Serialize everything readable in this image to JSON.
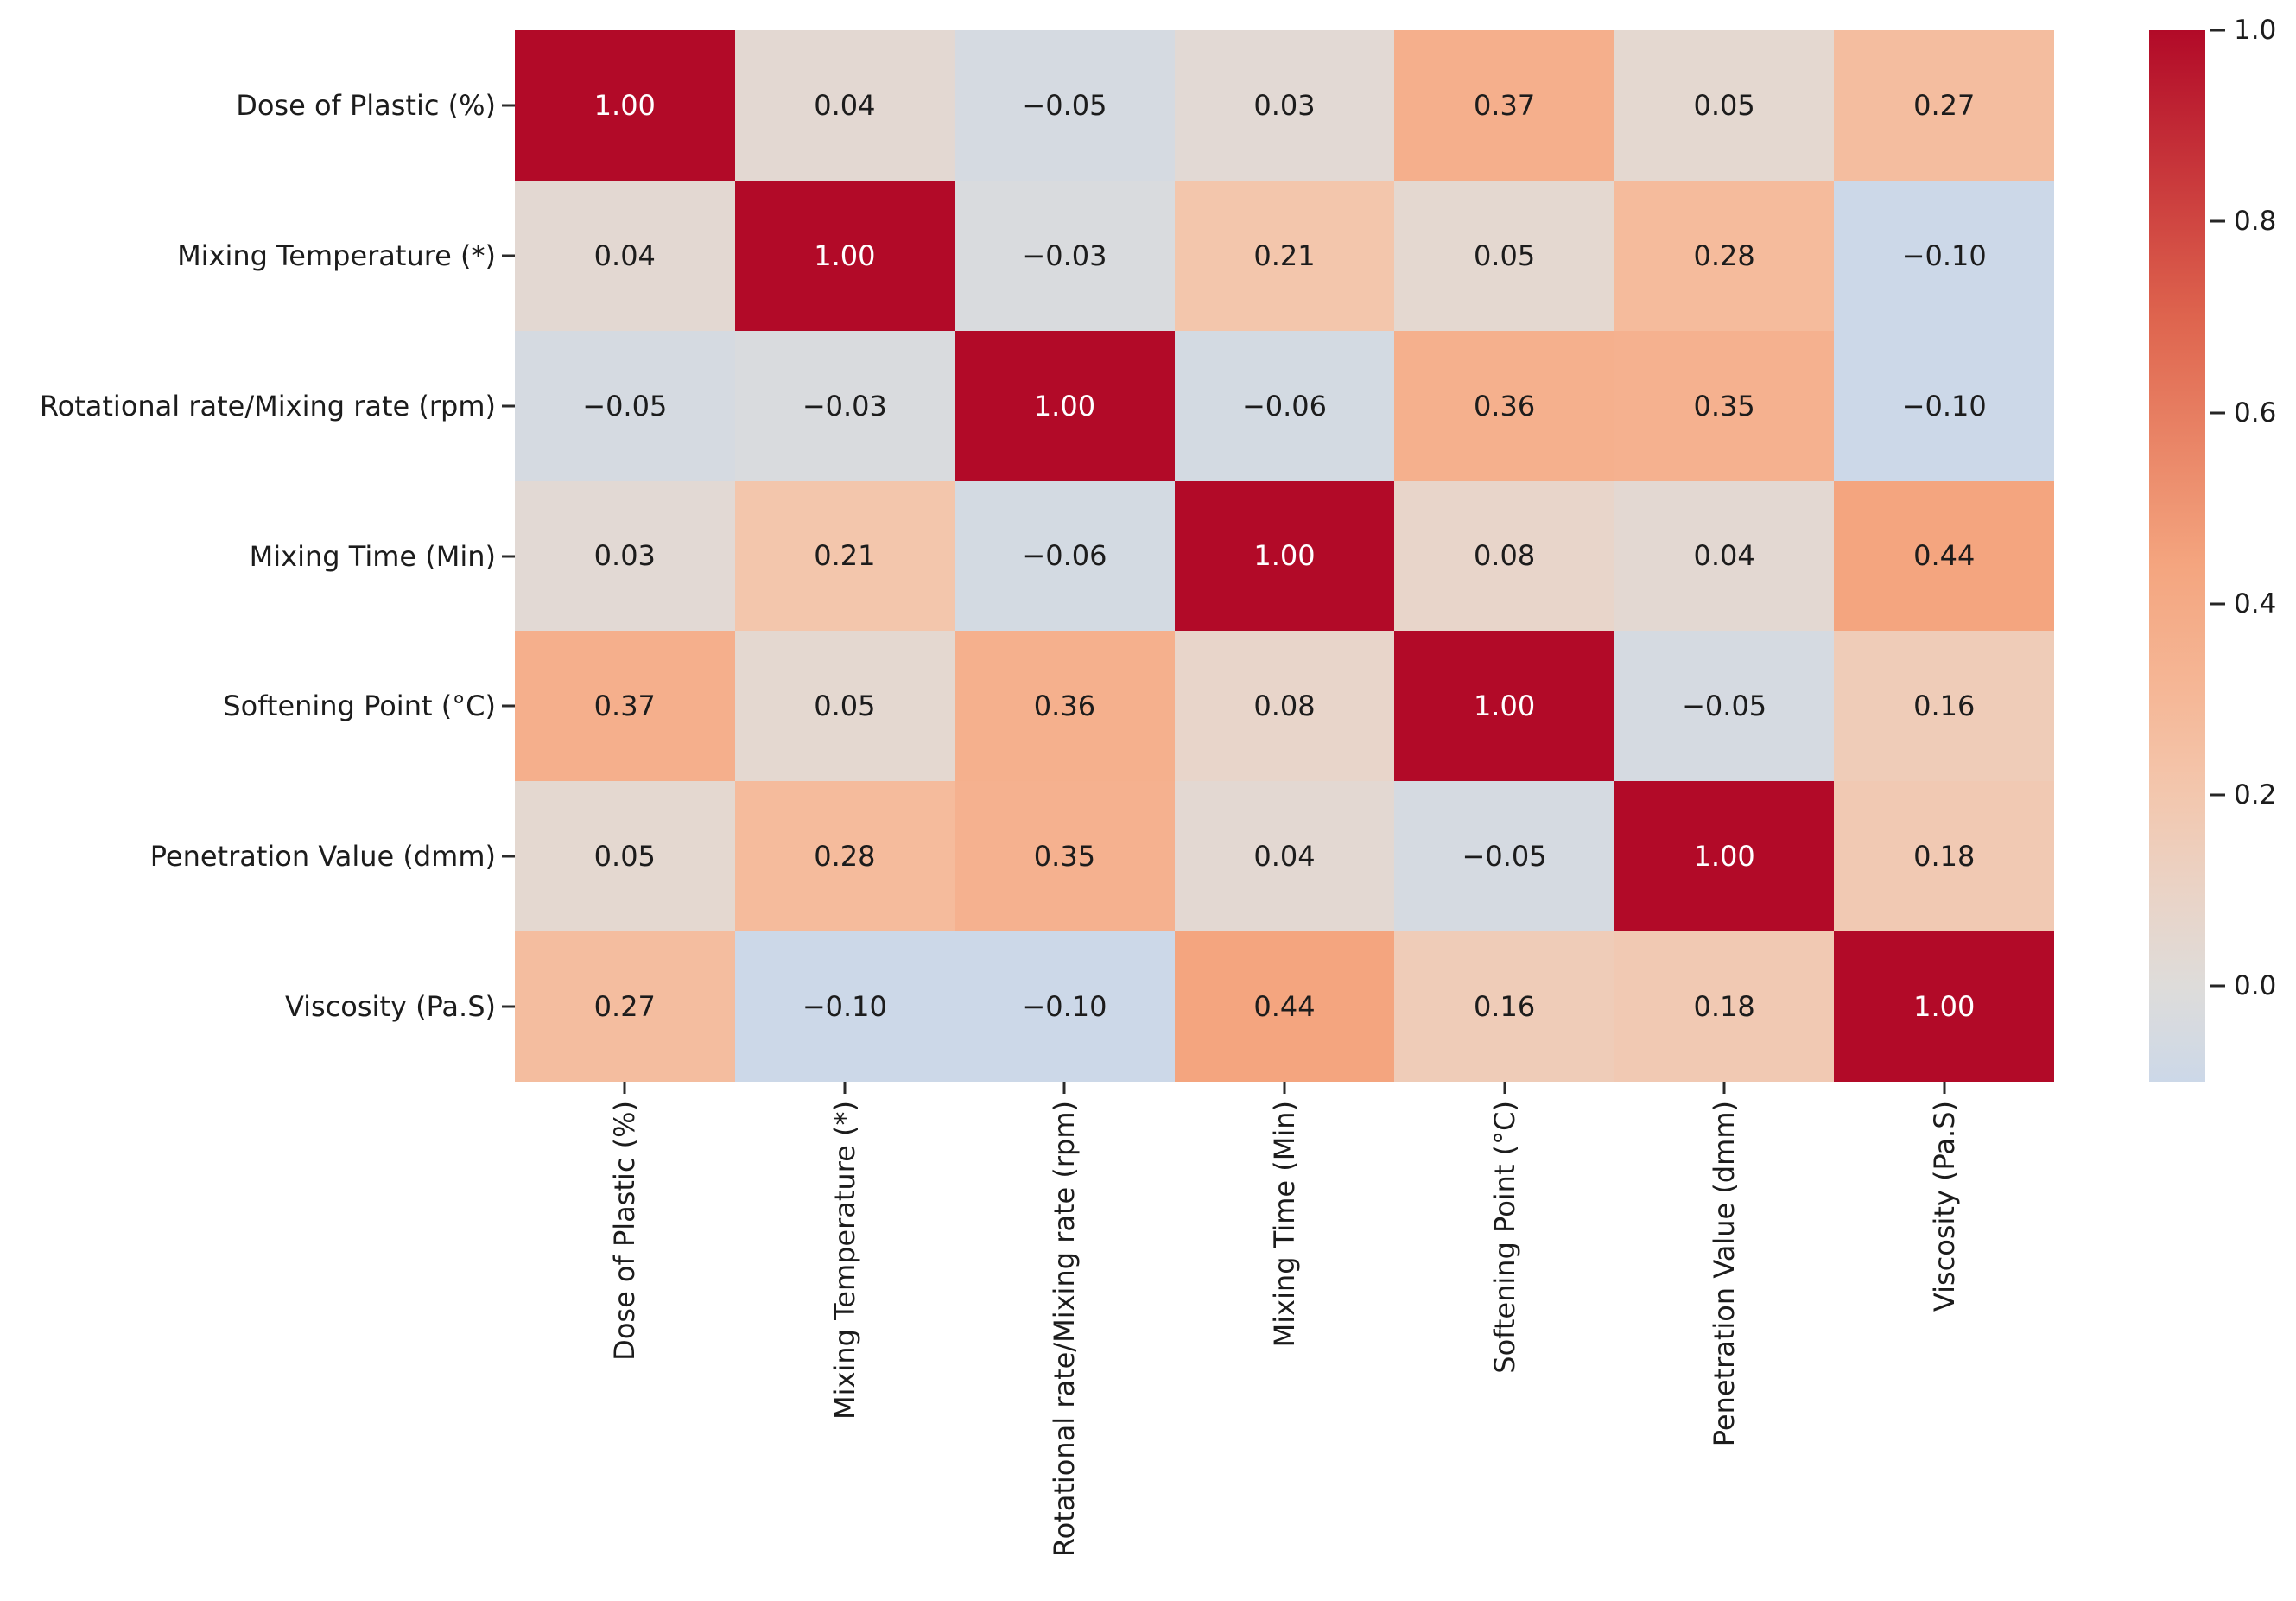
{
  "chart_data": {
    "type": "heatmap",
    "title": "",
    "xlabel": "",
    "ylabel": "",
    "grid": false,
    "legend_position": "colorbar-right",
    "categories": [
      "Dose of Plastic (%)",
      "Mixing Temperature (*)",
      "Rotational rate/Mixing rate (rpm)",
      "Mixing Time (Min)",
      "Softening Point (°C)",
      "Penetration Value (dmm)",
      "Viscosity (Pa.S)"
    ],
    "matrix": [
      [
        1.0,
        0.04,
        -0.05,
        0.03,
        0.37,
        0.05,
        0.27
      ],
      [
        0.04,
        1.0,
        -0.03,
        0.21,
        0.05,
        0.28,
        -0.1
      ],
      [
        -0.05,
        -0.03,
        1.0,
        -0.06,
        0.36,
        0.35,
        -0.1
      ],
      [
        0.03,
        0.21,
        -0.06,
        1.0,
        0.08,
        0.04,
        0.44
      ],
      [
        0.37,
        0.05,
        0.36,
        0.08,
        1.0,
        -0.05,
        0.16
      ],
      [
        0.05,
        0.28,
        0.35,
        0.04,
        -0.05,
        1.0,
        0.18
      ],
      [
        0.27,
        -0.1,
        -0.1,
        0.44,
        0.16,
        0.18,
        1.0
      ]
    ],
    "value_format_decimals": 2,
    "colorbar": {
      "vmin": -0.1,
      "vmax": 1.0,
      "tick_labels": [
        "1.0",
        "0.8",
        "0.6",
        "0.4",
        "0.2",
        "0.0"
      ],
      "tick_values": [
        1.0,
        0.8,
        0.6,
        0.4,
        0.2,
        0.0
      ]
    },
    "colors": {
      "max_red": "#b20a28",
      "mid_white": "#dedcda",
      "min_blue": "#ccd8e8",
      "annotation_dark": "#1c1c1c",
      "annotation_light": "#ffffff",
      "color_stops": [
        {
          "v": -0.1,
          "c": "#ccd8e8"
        },
        {
          "v": 0.0,
          "c": "#dedcda"
        },
        {
          "v": 0.1,
          "c": "#ead3c6"
        },
        {
          "v": 0.2,
          "c": "#f3c7ae"
        },
        {
          "v": 0.3,
          "c": "#f5b898"
        },
        {
          "v": 0.44,
          "c": "#f4a57f"
        },
        {
          "v": 0.7,
          "c": "#de644e"
        },
        {
          "v": 1.0,
          "c": "#b20a28"
        }
      ]
    }
  }
}
